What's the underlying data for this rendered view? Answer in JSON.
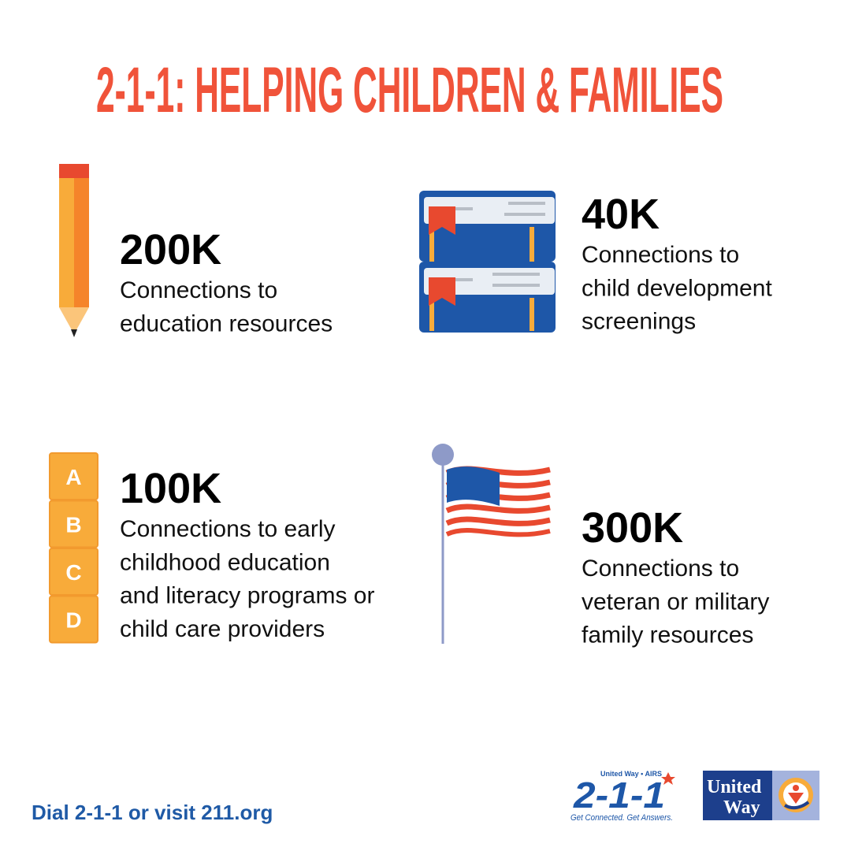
{
  "title": "2-1-1: HELPING CHILDREN & FAMILIES",
  "items": [
    {
      "stat": "200K",
      "lines": [
        "Connections to",
        "education resources"
      ]
    },
    {
      "stat": "40K",
      "lines": [
        "Connections to",
        "child development",
        "screenings"
      ]
    },
    {
      "stat": "100K",
      "lines": [
        "Connections to early",
        "childhood education",
        "and literacy programs or",
        "child care providers"
      ]
    },
    {
      "stat": "300K",
      "lines": [
        "Connections to",
        "veteran or military",
        "family resources"
      ]
    }
  ],
  "blocks": [
    "A",
    "B",
    "C",
    "D"
  ],
  "footer": {
    "cta": "Dial 2-1-1 or visit 211.org",
    "logo_211": {
      "top": "United Way • AIRS",
      "main": "2-1-1",
      "tagline": "Get Connected. Get Answers."
    },
    "logo_uw": [
      "United",
      "Way"
    ]
  }
}
